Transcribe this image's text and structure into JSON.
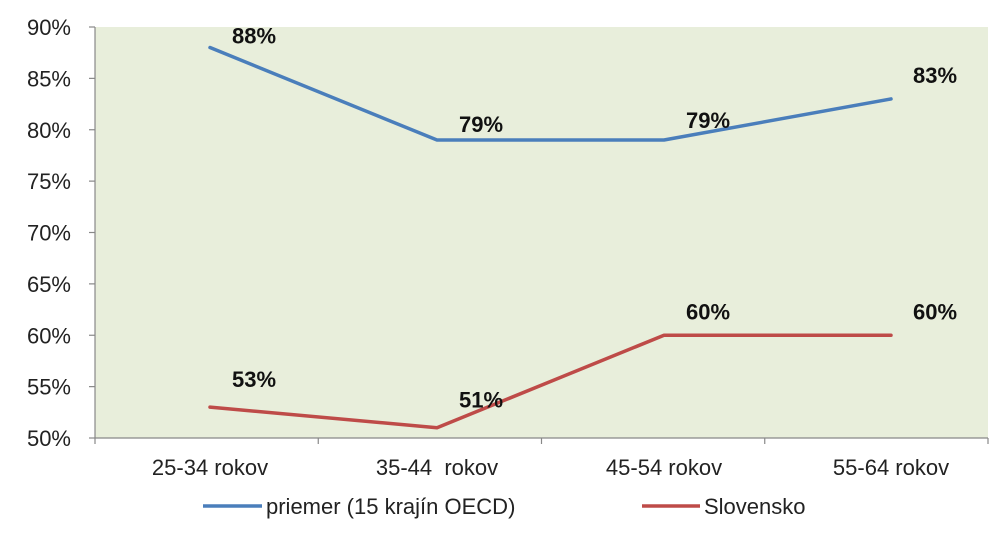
{
  "chart_data": {
    "type": "line",
    "categories": [
      "25-34 rokov",
      "35-44  rokov",
      "45-54 rokov",
      "55-64 rokov"
    ],
    "series": [
      {
        "name": "priemer (15 krajín OECD)",
        "values": [
          88,
          79,
          79,
          83
        ],
        "labels": [
          "88%",
          "79%",
          "79%",
          "83%"
        ],
        "color": "#4a7ebb"
      },
      {
        "name": "Slovensko",
        "values": [
          53,
          51,
          60,
          60
        ],
        "labels": [
          "53%",
          "51%",
          "60%",
          "60%"
        ],
        "color": "#be4b48"
      }
    ],
    "y_ticks": [
      "90%",
      "85%",
      "80%",
      "75%",
      "70%",
      "65%",
      "60%",
      "55%",
      "50%"
    ],
    "ylim": [
      50,
      90
    ],
    "y_unit": "%",
    "grid": false,
    "legend_position": "bottom",
    "plot_background": "#e8eedb",
    "title": "",
    "xlabel": "",
    "ylabel": ""
  }
}
